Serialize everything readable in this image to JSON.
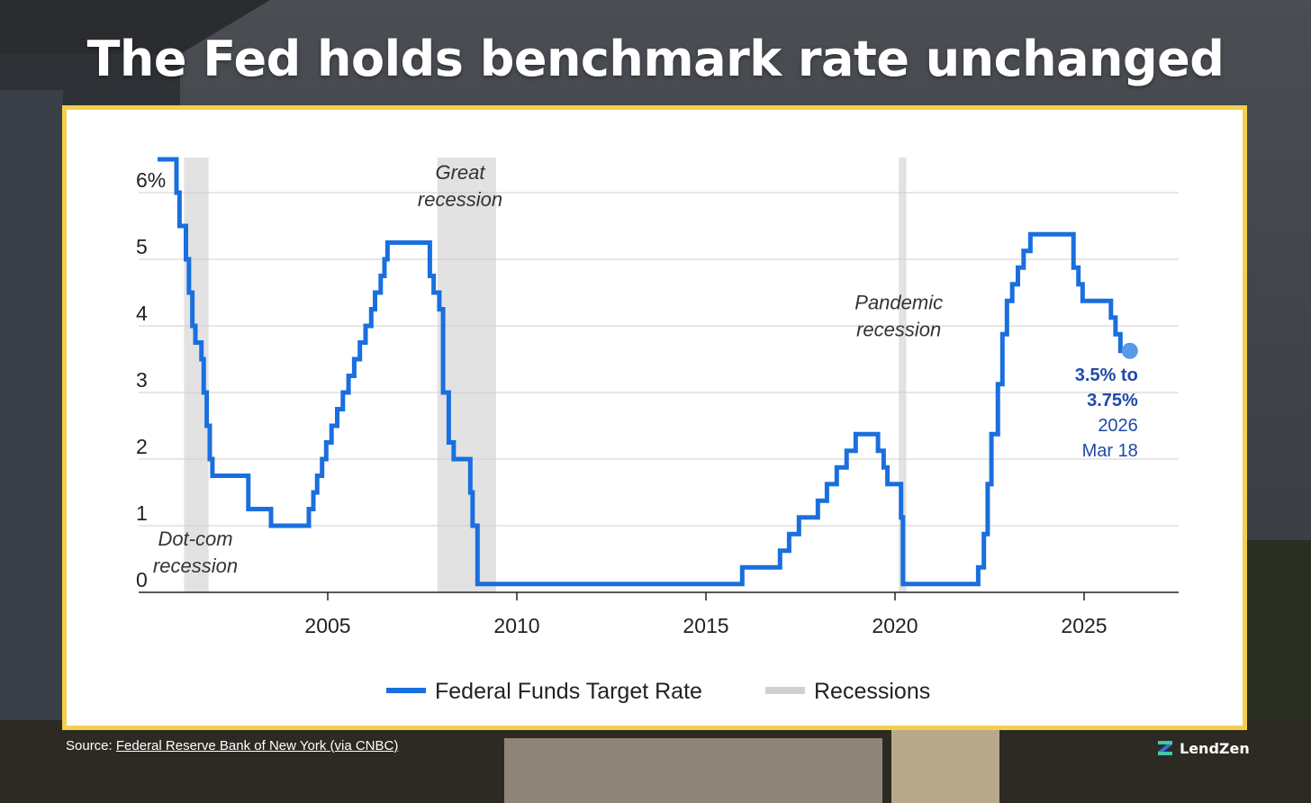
{
  "headline": "The Fed holds benchmark rate unchanged",
  "footer": {
    "source_prefix": "Source:",
    "source_link": "Federal Reserve Bank of New York (via CNBC)",
    "brand": "LendZen"
  },
  "colors": {
    "rate_line": "#1a6fde",
    "recession_band": "#e2e2e2",
    "card_border": "#f3cf4e",
    "annotation": "#1f4aa8"
  },
  "icons": {
    "brand_logo": "lendzen-z-logo"
  },
  "chart_data": {
    "type": "line",
    "title": "",
    "xlabel": "",
    "ylabel": "",
    "xlim": [
      2000,
      2027.5
    ],
    "ylim": [
      0,
      6.5
    ],
    "y_ticks": [
      0,
      1,
      2,
      3,
      4,
      5,
      6
    ],
    "y_tick_labels": [
      "0",
      "1",
      "2",
      "3",
      "4",
      "5",
      "6%"
    ],
    "x_ticks": [
      2005,
      2010,
      2015,
      2020,
      2025
    ],
    "x_tick_labels": [
      "2005",
      "2010",
      "2015",
      "2020",
      "2025"
    ],
    "grid": "horizontal",
    "legend": {
      "placement": "bottom",
      "entries": [
        "Federal Funds Target Rate",
        "Recessions"
      ]
    },
    "recessions": [
      {
        "start": 2001.2,
        "end": 2001.85,
        "label_lines": [
          "Dot-com",
          "recession"
        ]
      },
      {
        "start": 2007.9,
        "end": 2009.45,
        "label_lines": [
          "Great",
          "recession"
        ]
      },
      {
        "start": 2020.1,
        "end": 2020.3,
        "label_lines": [
          "Pandemic",
          "recession"
        ]
      }
    ],
    "series": [
      {
        "name": "Federal Funds Target Rate",
        "step": true,
        "points": [
          [
            2000.5,
            6.5
          ],
          [
            2001.0,
            6.0
          ],
          [
            2001.08,
            5.5
          ],
          [
            2001.25,
            5.0
          ],
          [
            2001.33,
            4.5
          ],
          [
            2001.42,
            4.0
          ],
          [
            2001.5,
            3.75
          ],
          [
            2001.66,
            3.5
          ],
          [
            2001.72,
            3.0
          ],
          [
            2001.8,
            2.5
          ],
          [
            2001.88,
            2.0
          ],
          [
            2001.95,
            1.75
          ],
          [
            2002.9,
            1.25
          ],
          [
            2003.5,
            1.0
          ],
          [
            2004.5,
            1.25
          ],
          [
            2004.62,
            1.5
          ],
          [
            2004.72,
            1.75
          ],
          [
            2004.85,
            2.0
          ],
          [
            2004.96,
            2.25
          ],
          [
            2005.1,
            2.5
          ],
          [
            2005.25,
            2.75
          ],
          [
            2005.4,
            3.0
          ],
          [
            2005.55,
            3.25
          ],
          [
            2005.7,
            3.5
          ],
          [
            2005.85,
            3.75
          ],
          [
            2006.0,
            4.0
          ],
          [
            2006.15,
            4.25
          ],
          [
            2006.25,
            4.5
          ],
          [
            2006.4,
            4.75
          ],
          [
            2006.5,
            5.0
          ],
          [
            2006.58,
            5.25
          ],
          [
            2007.7,
            4.75
          ],
          [
            2007.8,
            4.5
          ],
          [
            2007.95,
            4.25
          ],
          [
            2008.05,
            3.0
          ],
          [
            2008.2,
            2.25
          ],
          [
            2008.33,
            2.0
          ],
          [
            2008.77,
            1.5
          ],
          [
            2008.83,
            1.0
          ],
          [
            2008.96,
            0.125
          ],
          [
            2015.96,
            0.375
          ],
          [
            2016.96,
            0.625
          ],
          [
            2017.2,
            0.875
          ],
          [
            2017.46,
            1.125
          ],
          [
            2017.96,
            1.375
          ],
          [
            2018.2,
            1.625
          ],
          [
            2018.46,
            1.875
          ],
          [
            2018.72,
            2.125
          ],
          [
            2018.96,
            2.375
          ],
          [
            2019.55,
            2.125
          ],
          [
            2019.7,
            1.875
          ],
          [
            2019.8,
            1.625
          ],
          [
            2020.16,
            1.125
          ],
          [
            2020.21,
            0.125
          ],
          [
            2022.2,
            0.375
          ],
          [
            2022.35,
            0.875
          ],
          [
            2022.45,
            1.625
          ],
          [
            2022.55,
            2.375
          ],
          [
            2022.72,
            3.125
          ],
          [
            2022.84,
            3.875
          ],
          [
            2022.96,
            4.375
          ],
          [
            2023.1,
            4.625
          ],
          [
            2023.25,
            4.875
          ],
          [
            2023.4,
            5.125
          ],
          [
            2023.58,
            5.375
          ],
          [
            2024.72,
            4.875
          ],
          [
            2024.85,
            4.625
          ],
          [
            2024.96,
            4.375
          ],
          [
            2025.71,
            4.125
          ],
          [
            2025.83,
            3.875
          ],
          [
            2025.96,
            3.625
          ],
          [
            2026.21,
            3.625
          ]
        ]
      }
    ],
    "annotation": {
      "x": 2026.21,
      "y": 3.625,
      "bold_lines": [
        "3.5% to",
        "3.75%"
      ],
      "lines": [
        "2026",
        "Mar 18"
      ]
    }
  }
}
